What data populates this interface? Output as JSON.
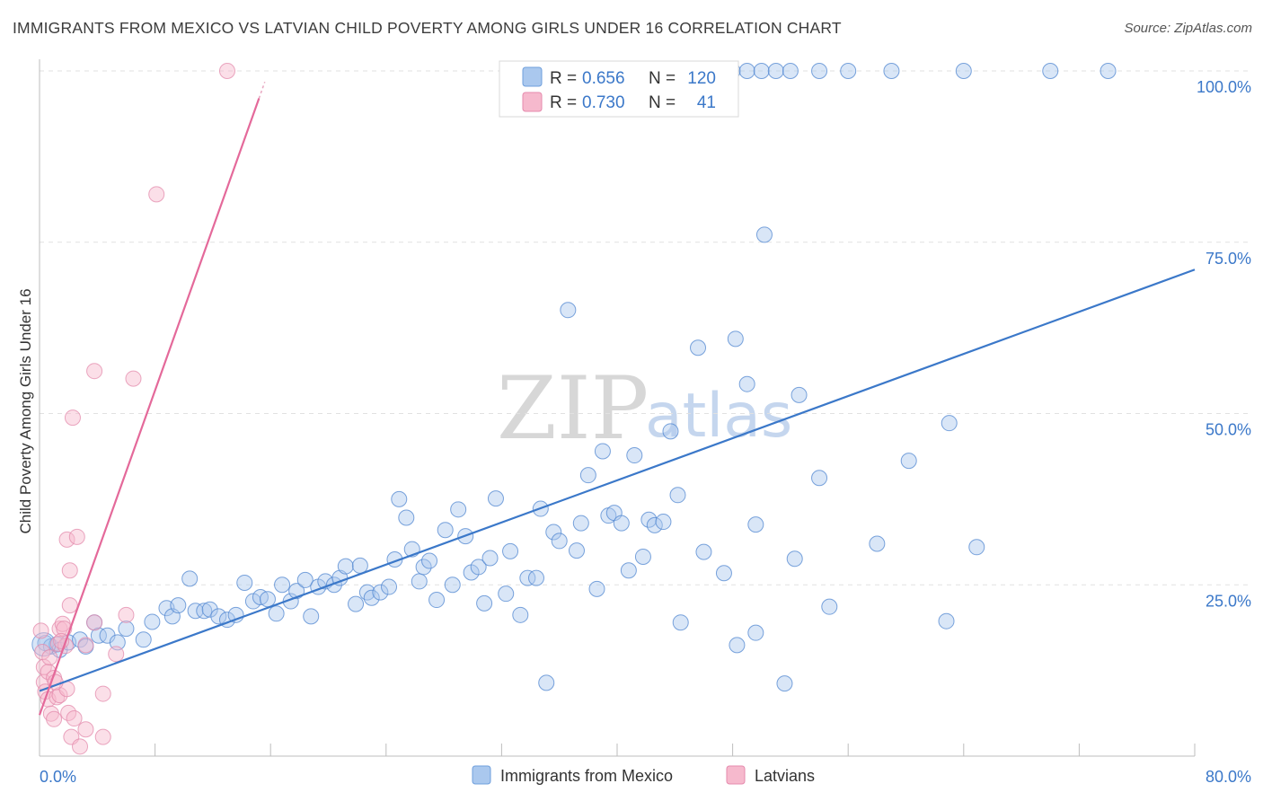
{
  "title": "IMMIGRANTS FROM MEXICO VS LATVIAN CHILD POVERTY AMONG GIRLS UNDER 16 CORRELATION CHART",
  "source": "Source: ZipAtlas.com",
  "watermark": {
    "zip": "ZIP",
    "atlas": "atlas"
  },
  "colors": {
    "blue": "#3b78c9",
    "blue_fill": "#aac8ee",
    "pink": "#e4699a",
    "pink_fill": "#f6b9cd",
    "grid": "#e1e1e1"
  },
  "legend": {
    "rows": [
      {
        "r_label": "R =",
        "r_value": "0.656",
        "n_label": "N =",
        "n_value": "120"
      },
      {
        "r_label": "R =",
        "r_value": "0.730",
        "n_label": "N =",
        "n_value": "41"
      }
    ]
  },
  "chart_data": {
    "type": "scatter",
    "title": "IMMIGRANTS FROM MEXICO VS LATVIAN CHILD POVERTY AMONG GIRLS UNDER 16 CORRELATION CHART",
    "xlabel": "",
    "ylabel": "Child Poverty Among Girls Under 16",
    "xlim": [
      0,
      80
    ],
    "ylim": [
      0,
      100
    ],
    "x_tick_labels": [
      "0.0%",
      "80.0%"
    ],
    "y_ticks": [
      25,
      50,
      75,
      100
    ],
    "y_tick_labels": [
      "25.0%",
      "50.0%",
      "75.0%",
      "100.0%"
    ],
    "grid": true,
    "series": [
      {
        "name": "Immigrants from Mexico",
        "color": "#3b78c9",
        "r": 0.656,
        "n": 120,
        "trend": [
          [
            0,
            9.5
          ],
          [
            80,
            71
          ]
        ],
        "points": [
          [
            0.4,
            16.5
          ],
          [
            0.8,
            16
          ],
          [
            1.2,
            16.3
          ],
          [
            1.4,
            15.5
          ],
          [
            2.0,
            16.6
          ],
          [
            2.8,
            17
          ],
          [
            3.2,
            16
          ],
          [
            3.8,
            19.5
          ],
          [
            4.1,
            17.6
          ],
          [
            4.7,
            17.6
          ],
          [
            5.4,
            16.6
          ],
          [
            6.0,
            18.6
          ],
          [
            7.2,
            17
          ],
          [
            7.8,
            19.6
          ],
          [
            8.8,
            21.6
          ],
          [
            9.2,
            20.4
          ],
          [
            9.6,
            22
          ],
          [
            10.4,
            25.9
          ],
          [
            10.8,
            21.2
          ],
          [
            11.4,
            21.2
          ],
          [
            11.8,
            21.4
          ],
          [
            12.4,
            20.4
          ],
          [
            13.0,
            19.9
          ],
          [
            13.6,
            20.6
          ],
          [
            14.2,
            25.3
          ],
          [
            14.8,
            22.6
          ],
          [
            15.3,
            23.2
          ],
          [
            15.8,
            22.9
          ],
          [
            16.4,
            20.8
          ],
          [
            16.8,
            25
          ],
          [
            17.4,
            22.6
          ],
          [
            17.8,
            24.1
          ],
          [
            18.4,
            25.7
          ],
          [
            18.8,
            20.4
          ],
          [
            19.3,
            24.7
          ],
          [
            19.8,
            25.5
          ],
          [
            20.4,
            25
          ],
          [
            20.8,
            26
          ],
          [
            21.2,
            27.7
          ],
          [
            21.9,
            22.2
          ],
          [
            22.2,
            27.8
          ],
          [
            22.7,
            23.9
          ],
          [
            23.0,
            23.1
          ],
          [
            23.6,
            23.9
          ],
          [
            24.2,
            24.7
          ],
          [
            24.6,
            28.7
          ],
          [
            24.9,
            37.5
          ],
          [
            25.4,
            34.8
          ],
          [
            25.8,
            30.2
          ],
          [
            26.3,
            25.5
          ],
          [
            26.6,
            27.6
          ],
          [
            27.0,
            28.5
          ],
          [
            27.5,
            22.8
          ],
          [
            28.1,
            33
          ],
          [
            28.6,
            25
          ],
          [
            29.0,
            36
          ],
          [
            29.5,
            32.1
          ],
          [
            29.9,
            26.8
          ],
          [
            30.4,
            27.6
          ],
          [
            30.8,
            22.3
          ],
          [
            31.2,
            28.9
          ],
          [
            31.6,
            37.6
          ],
          [
            32.3,
            23.7
          ],
          [
            32.6,
            29.9
          ],
          [
            33.3,
            20.6
          ],
          [
            33.8,
            26
          ],
          [
            34.4,
            26
          ],
          [
            34.7,
            36.1
          ],
          [
            35.1,
            10.7
          ],
          [
            35.6,
            32.7
          ],
          [
            36.0,
            31.4
          ],
          [
            36.6,
            65.1
          ],
          [
            37.2,
            30
          ],
          [
            37.5,
            34
          ],
          [
            38.0,
            41
          ],
          [
            38.6,
            24.4
          ],
          [
            39.0,
            44.5
          ],
          [
            39.4,
            35.1
          ],
          [
            39.8,
            35.5
          ],
          [
            40.3,
            34
          ],
          [
            40.8,
            27.1
          ],
          [
            41.2,
            43.9
          ],
          [
            41.8,
            29.1
          ],
          [
            42.2,
            34.5
          ],
          [
            42.6,
            33.7
          ],
          [
            43.2,
            34.2
          ],
          [
            43.7,
            47.4
          ],
          [
            44.2,
            38.1
          ],
          [
            44.4,
            19.5
          ],
          [
            45.6,
            59.6
          ],
          [
            46.0,
            29.8
          ],
          [
            47.4,
            26.7
          ],
          [
            48.2,
            60.9
          ],
          [
            48.3,
            16.2
          ],
          [
            49.0,
            54.3
          ],
          [
            49.6,
            33.8
          ],
          [
            49.6,
            18
          ],
          [
            50.2,
            76.1
          ],
          [
            51.6,
            10.6
          ],
          [
            52.3,
            28.8
          ],
          [
            52.6,
            52.7
          ],
          [
            54.0,
            40.6
          ],
          [
            54.7,
            21.8
          ],
          [
            58.0,
            31
          ],
          [
            60.2,
            43.1
          ],
          [
            62.8,
            19.7
          ],
          [
            63.0,
            48.6
          ],
          [
            64.9,
            30.5
          ],
          [
            48,
            100
          ],
          [
            49,
            100
          ],
          [
            50,
            100
          ],
          [
            51,
            100
          ],
          [
            52,
            100
          ],
          [
            54,
            100
          ],
          [
            56,
            100
          ],
          [
            59,
            100
          ],
          [
            64,
            100
          ],
          [
            70,
            100
          ],
          [
            74,
            100
          ]
        ]
      },
      {
        "name": "Latvians",
        "color": "#e4699a",
        "r": 0.73,
        "n": 41,
        "trend": [
          [
            0,
            6
          ],
          [
            15.2,
            96
          ]
        ],
        "points": [
          [
            0.1,
            18.3
          ],
          [
            0.2,
            15.2
          ],
          [
            0.3,
            13
          ],
          [
            0.3,
            10.8
          ],
          [
            0.4,
            9.4
          ],
          [
            0.6,
            12.3
          ],
          [
            0.6,
            8.3
          ],
          [
            0.8,
            6.2
          ],
          [
            1.0,
            11.4
          ],
          [
            1.0,
            5.4
          ],
          [
            1.2,
            8.6
          ],
          [
            1.3,
            16.4
          ],
          [
            1.4,
            18.6
          ],
          [
            1.4,
            8.9
          ],
          [
            1.6,
            19.3
          ],
          [
            1.7,
            18.6
          ],
          [
            1.8,
            16.1
          ],
          [
            1.9,
            9.8
          ],
          [
            1.9,
            31.6
          ],
          [
            2.0,
            6.3
          ],
          [
            2.1,
            27.1
          ],
          [
            2.2,
            2.8
          ],
          [
            2.3,
            49.4
          ],
          [
            2.4,
            5.5
          ],
          [
            2.6,
            32
          ],
          [
            2.8,
            1.4
          ],
          [
            3.2,
            16.2
          ],
          [
            3.2,
            3.9
          ],
          [
            3.8,
            19.5
          ],
          [
            3.8,
            56.2
          ],
          [
            4.4,
            9.1
          ],
          [
            4.4,
            2.8
          ],
          [
            5.3,
            14.9
          ],
          [
            6.0,
            20.6
          ],
          [
            6.5,
            55.1
          ],
          [
            8.1,
            82
          ],
          [
            13.0,
            100
          ],
          [
            2.1,
            22
          ],
          [
            1.5,
            16.8
          ],
          [
            1.1,
            10.8
          ],
          [
            0.7,
            14.4
          ]
        ]
      }
    ]
  },
  "bottom_legend": {
    "items": [
      "Immigrants from Mexico",
      "Latvians"
    ]
  }
}
